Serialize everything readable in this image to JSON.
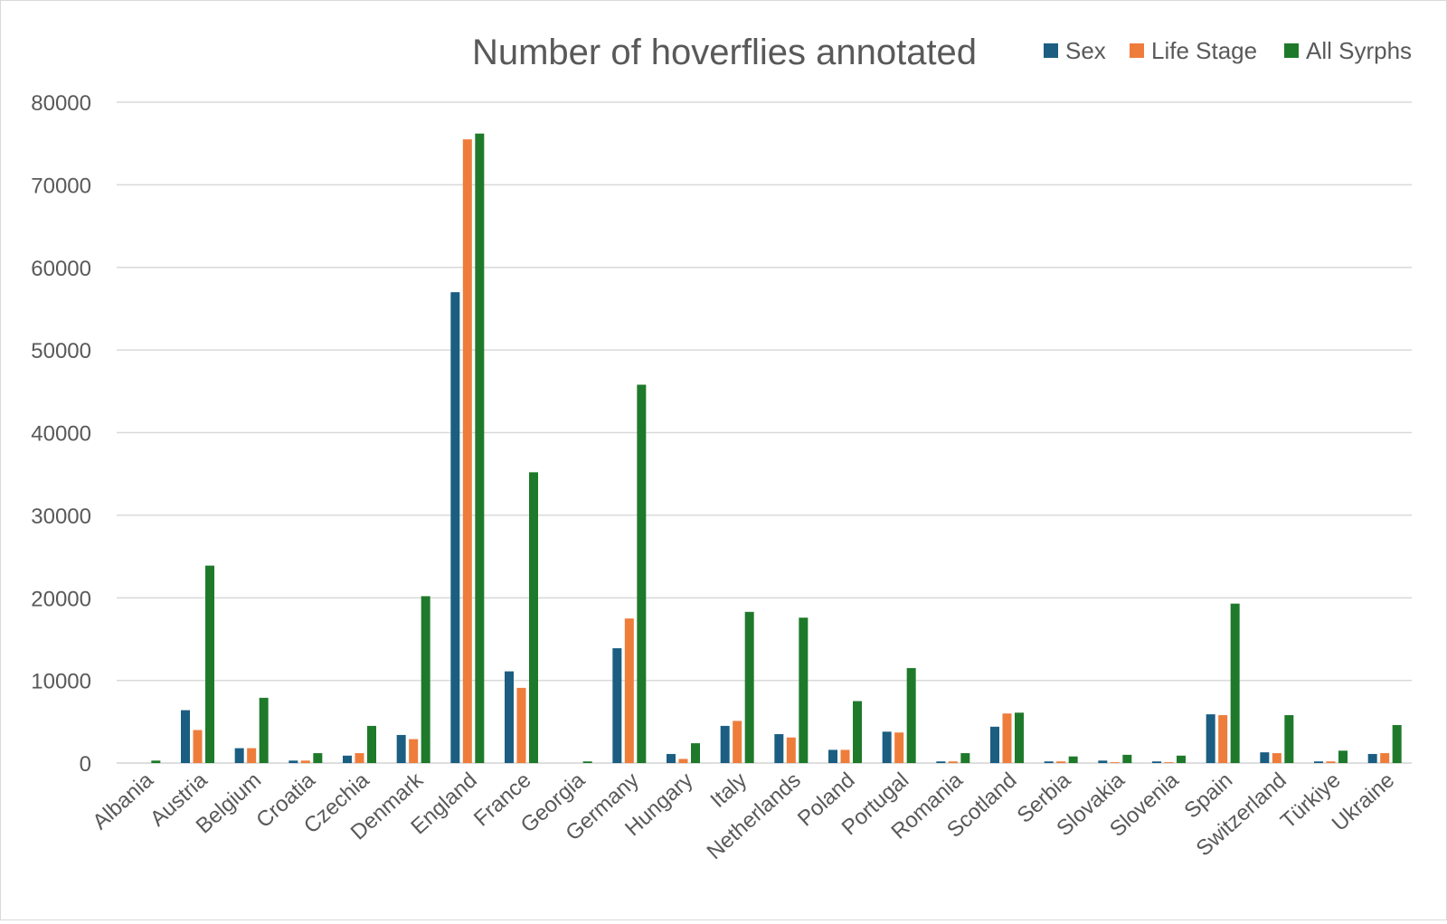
{
  "chart_data": {
    "type": "bar",
    "title": "Number of hoverflies annotated",
    "xlabel": "",
    "ylabel": "",
    "ylim": [
      0,
      80000
    ],
    "yticks": [
      0,
      10000,
      20000,
      30000,
      40000,
      50000,
      60000,
      70000,
      80000
    ],
    "grid": true,
    "legend_position": "top-right",
    "categories": [
      "Albania",
      "Austria",
      "Belgium",
      "Croatia",
      "Czechia",
      "Denmark",
      "England",
      "France",
      "Georgia",
      "Germany",
      "Hungary",
      "Italy",
      "Netherlands",
      "Poland",
      "Portugal",
      "Romania",
      "Scotland",
      "Serbia",
      "Slovakia",
      "Slovenia",
      "Spain",
      "Switzerland",
      "Türkiye",
      "Ukraine"
    ],
    "series": [
      {
        "name": "Sex",
        "color": "#1b5e82",
        "values": [
          0,
          6400,
          1800,
          300,
          900,
          3400,
          57000,
          11100,
          0,
          13900,
          1100,
          4500,
          3500,
          1600,
          3800,
          200,
          4400,
          200,
          300,
          200,
          5900,
          1300,
          200,
          1100
        ]
      },
      {
        "name": "Life Stage",
        "color": "#ee7d3b",
        "values": [
          0,
          4000,
          1800,
          300,
          1200,
          2900,
          75500,
          9100,
          0,
          17500,
          500,
          5100,
          3100,
          1600,
          3700,
          200,
          6000,
          200,
          100,
          100,
          5800,
          1200,
          200,
          1200
        ]
      },
      {
        "name": "All Syrphs",
        "color": "#1e7a2a",
        "values": [
          300,
          23900,
          7900,
          1200,
          4500,
          20200,
          76200,
          35200,
          200,
          45800,
          2400,
          18300,
          17600,
          7500,
          11500,
          1200,
          6100,
          800,
          1000,
          900,
          19300,
          5800,
          1500,
          4600
        ]
      }
    ]
  }
}
